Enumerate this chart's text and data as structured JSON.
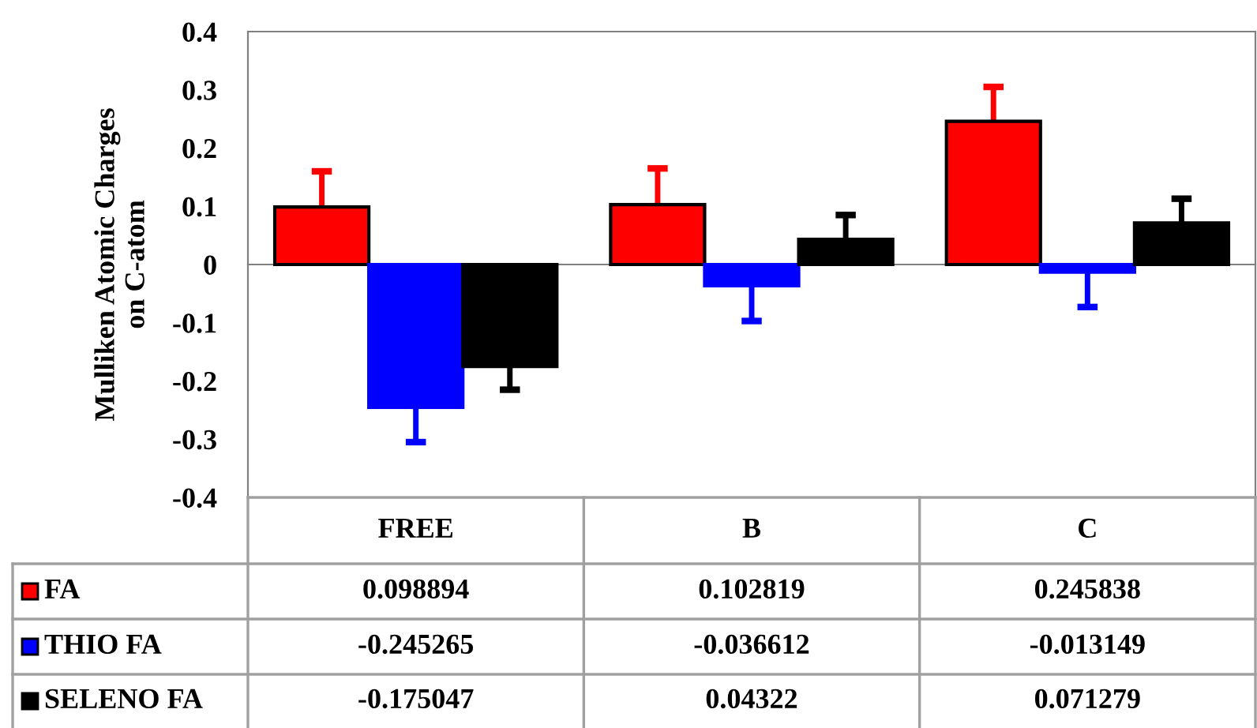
{
  "chart_data": {
    "type": "bar",
    "ylabel": "Mulliken Atomic Charges\non C-atom",
    "categories": [
      "FREE",
      "B",
      "C"
    ],
    "series": [
      {
        "name": "FA",
        "color": "#ff0000",
        "values": [
          0.098894,
          0.102819,
          0.245838
        ],
        "errors": [
          [
            0.098894,
            0.16
          ],
          [
            0.102819,
            0.165
          ],
          [
            0.245838,
            0.305
          ]
        ]
      },
      {
        "name": "THIO FA",
        "color": "#0000ff",
        "values": [
          -0.245265,
          -0.036612,
          -0.013149
        ],
        "errors": [
          [
            -0.305,
            -0.245265
          ],
          [
            -0.097,
            -0.036612
          ],
          [
            -0.073,
            -0.013149
          ]
        ]
      },
      {
        "name": "SELENO FA",
        "color": "#000000",
        "values": [
          -0.175047,
          0.04322,
          0.071279
        ],
        "errors": [
          [
            -0.215,
            -0.175047
          ],
          [
            0.04322,
            0.085
          ],
          [
            0.071279,
            0.113
          ]
        ]
      }
    ],
    "ylim": [
      -0.4,
      0.4
    ],
    "yticks": [
      -0.4,
      -0.3,
      -0.2,
      -0.1,
      0,
      0.1,
      0.2,
      0.3,
      0.4
    ],
    "data_labels": true,
    "legend": "bottom"
  }
}
